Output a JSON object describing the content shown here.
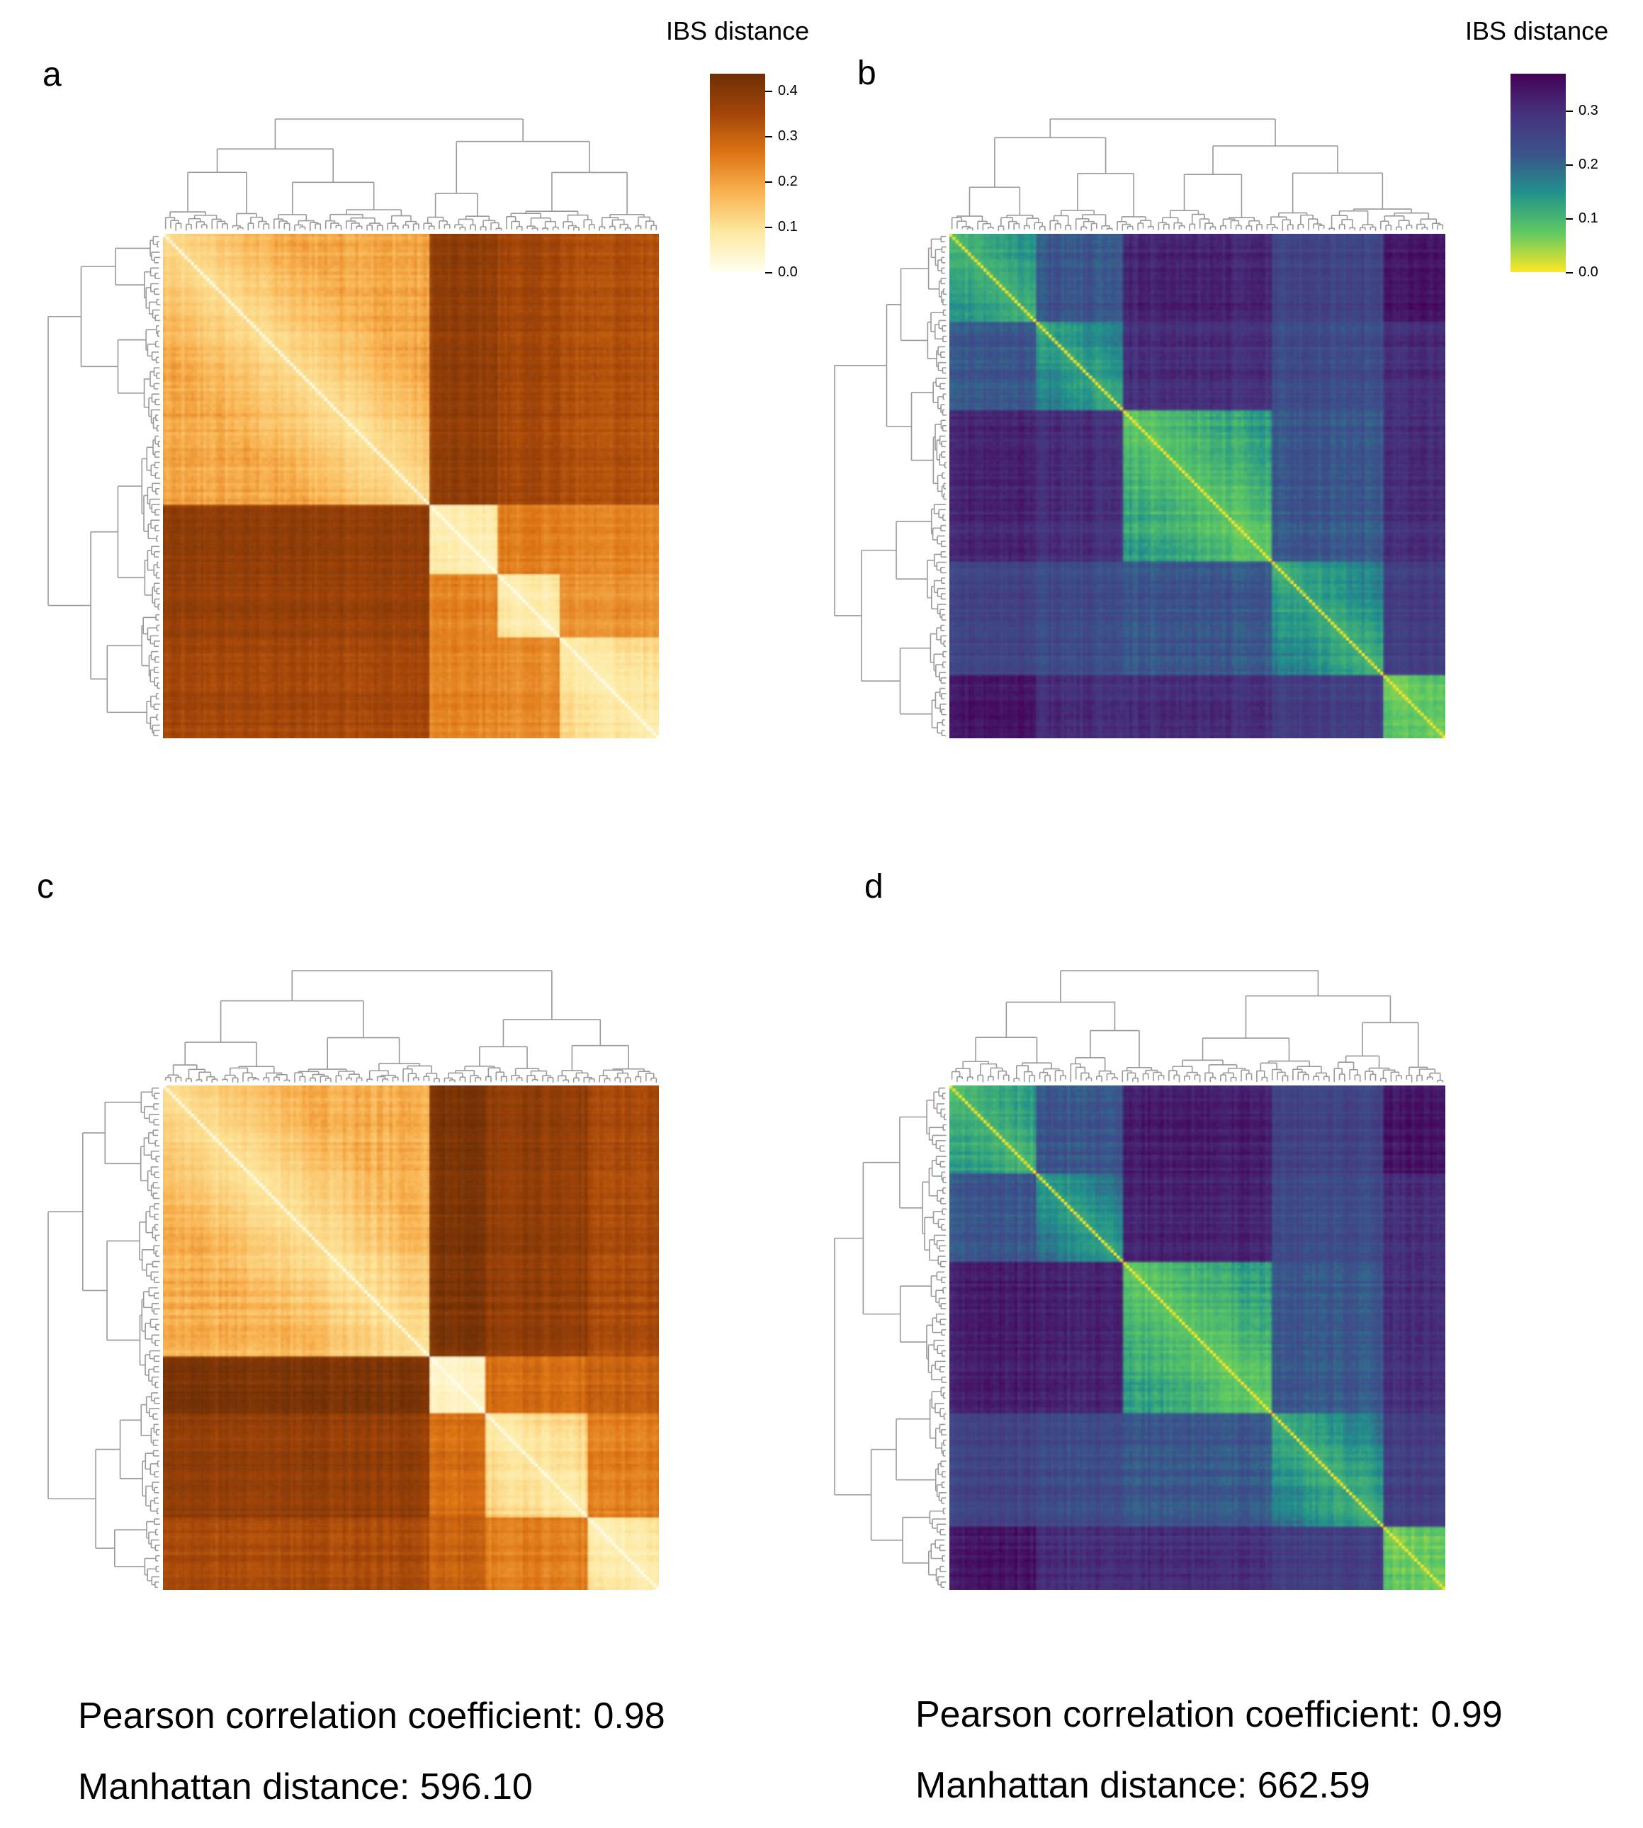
{
  "panels": {
    "a": {
      "label": "a"
    },
    "b": {
      "label": "b"
    },
    "c": {
      "label": "c"
    },
    "d": {
      "label": "d"
    }
  },
  "colorbars": {
    "left": {
      "title": "IBS distance",
      "colormap": "afmhot_r",
      "ticks": [
        "0.4",
        "0.3",
        "0.2",
        "0.1",
        "0.0"
      ],
      "colors": [
        "#fffff0",
        "#fde9a2",
        "#f9b351",
        "#dd7414",
        "#a34509",
        "#6e2f05"
      ]
    },
    "right": {
      "title": "IBS distance",
      "colormap": "viridis_r",
      "ticks": [
        "0.3",
        "0.2",
        "0.1",
        "0.0"
      ],
      "colors": [
        "#fde725",
        "#5ec962",
        "#21918c",
        "#3b528b",
        "#46327e",
        "#440154"
      ]
    }
  },
  "stats": {
    "left": {
      "pearson": "Pearson correlation coefficient: 0.98",
      "manhattan": "Manhattan distance: 596.10"
    },
    "right": {
      "pearson": "Pearson correlation coefficient: 0.99",
      "manhattan": "Manhattan distance: 662.59"
    }
  },
  "chart_data": [
    {
      "type": "heatmap",
      "panel": "a",
      "colorbar_title": "IBS distance",
      "vmin": 0,
      "vmax": 0.44,
      "clusters": [
        [
          0,
          0.54
        ],
        [
          0.54,
          0.68
        ],
        [
          0.68,
          0.8
        ],
        [
          0.8,
          1
        ]
      ],
      "block_values": [
        [
          0.14,
          0.38,
          0.35,
          0.33
        ],
        [
          0.38,
          0.08,
          0.25,
          0.24
        ],
        [
          0.37,
          0.24,
          0.09,
          0.22
        ],
        [
          0.35,
          0.24,
          0.23,
          0.1
        ]
      ]
    },
    {
      "type": "heatmap",
      "panel": "b",
      "colorbar_title": "IBS distance",
      "vmin": 0,
      "vmax": 0.37,
      "clusters": [
        [
          0,
          0.18
        ],
        [
          0.18,
          0.35
        ],
        [
          0.35,
          0.65
        ],
        [
          0.65,
          0.88
        ],
        [
          0.88,
          1
        ]
      ],
      "block_values": [
        [
          0.14,
          0.22,
          0.32,
          0.26,
          0.34
        ],
        [
          0.22,
          0.16,
          0.3,
          0.24,
          0.3
        ],
        [
          0.32,
          0.3,
          0.1,
          0.22,
          0.3
        ],
        [
          0.26,
          0.24,
          0.22,
          0.15,
          0.27
        ],
        [
          0.34,
          0.3,
          0.3,
          0.27,
          0.08
        ]
      ]
    },
    {
      "type": "heatmap",
      "panel": "c",
      "vmin": 0,
      "vmax": 0.44,
      "clusters": [
        [
          0,
          0.54
        ],
        [
          0.54,
          0.65
        ],
        [
          0.65,
          0.86
        ],
        [
          0.86,
          1
        ]
      ],
      "block_values": [
        [
          0.13,
          0.42,
          0.38,
          0.34
        ],
        [
          0.42,
          0.06,
          0.28,
          0.3
        ],
        [
          0.38,
          0.28,
          0.11,
          0.25
        ],
        [
          0.34,
          0.3,
          0.25,
          0.09
        ]
      ]
    },
    {
      "type": "heatmap",
      "panel": "d",
      "vmin": 0,
      "vmax": 0.37,
      "clusters": [
        [
          0,
          0.18
        ],
        [
          0.18,
          0.35
        ],
        [
          0.35,
          0.65
        ],
        [
          0.65,
          0.88
        ],
        [
          0.88,
          1
        ]
      ],
      "block_values": [
        [
          0.13,
          0.22,
          0.33,
          0.26,
          0.34
        ],
        [
          0.22,
          0.17,
          0.32,
          0.24,
          0.3
        ],
        [
          0.33,
          0.32,
          0.1,
          0.22,
          0.3
        ],
        [
          0.26,
          0.24,
          0.22,
          0.15,
          0.27
        ],
        [
          0.34,
          0.3,
          0.3,
          0.27,
          0.08
        ]
      ]
    }
  ]
}
